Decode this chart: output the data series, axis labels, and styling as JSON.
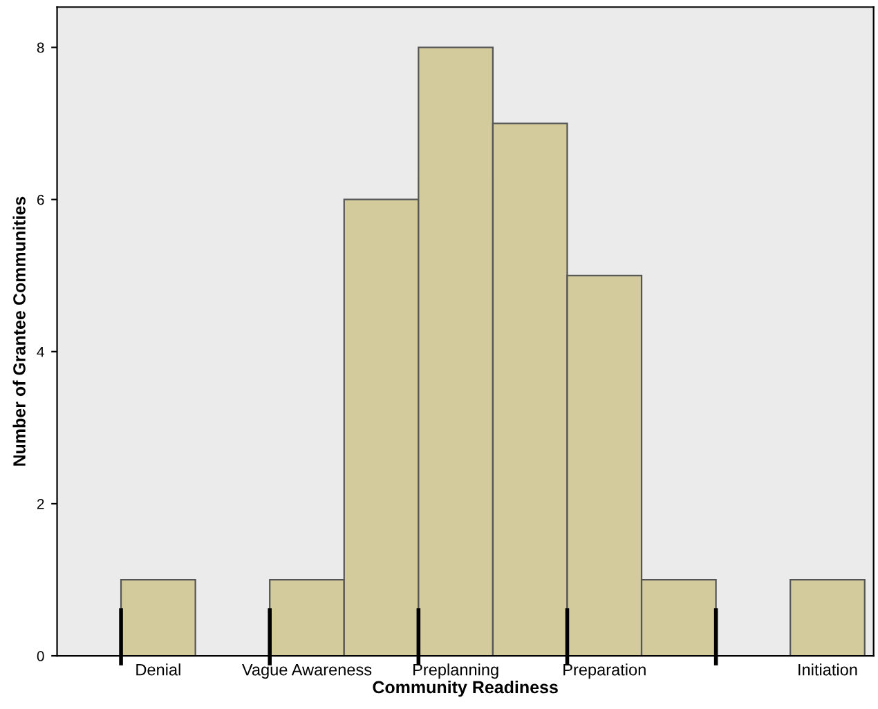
{
  "chart_data": {
    "type": "bar",
    "xlabel": "Community Readiness",
    "ylabel": "Number of Grantee Communities",
    "categories": [
      "Denial",
      null,
      "Vague Awareness",
      null,
      "Preplanning",
      null,
      "Preparation",
      null,
      null,
      "Initiation"
    ],
    "values": [
      1,
      0,
      1,
      6,
      8,
      7,
      5,
      1,
      0,
      1
    ],
    "color": "#d4cb9c",
    "ylim": [
      0,
      8.53
    ],
    "yticks": [
      0,
      2,
      4,
      6,
      8
    ],
    "grid": false
  }
}
